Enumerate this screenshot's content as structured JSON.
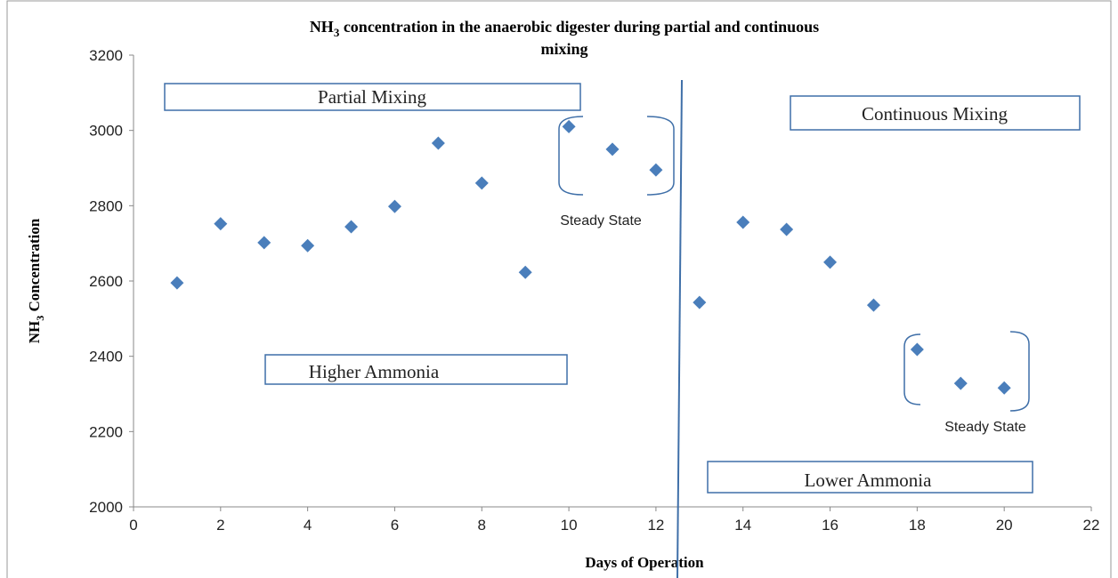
{
  "chart_data": {
    "type": "scatter",
    "title": {
      "prefix": "NH",
      "subscript": "3",
      "line1": " concentration in the anaerobic digester during partial and continuous",
      "line2": "mixing"
    },
    "x_label": "Days of Operation",
    "y_label": {
      "prefix": "NH",
      "subscript": "3",
      "rest": " Concentration"
    },
    "x": [
      1,
      2,
      3,
      4,
      5,
      6,
      7,
      8,
      9,
      10,
      11,
      12,
      13,
      14,
      15,
      16,
      17,
      18,
      19,
      20
    ],
    "values": [
      2595,
      2752,
      2702,
      2694,
      2744,
      2798,
      2966,
      2860,
      2623,
      3010,
      2950,
      2895,
      2543,
      2756,
      2737,
      2650,
      2536,
      2418,
      2328,
      2316
    ],
    "color": "#4a7ebb",
    "xlim": [
      0,
      22
    ],
    "xticks": [
      0,
      2,
      4,
      6,
      8,
      10,
      12,
      14,
      16,
      18,
      20,
      22
    ],
    "ylim": [
      2000,
      3200
    ],
    "yticks": [
      2000,
      2200,
      2400,
      2600,
      2800,
      3000,
      3200
    ],
    "grid": false,
    "annotations": [
      "Partial Mixing",
      "Continuous Mixing",
      "Higher  Ammonia",
      "Lower Ammonia",
      "Steady State",
      "Steady  State"
    ]
  }
}
